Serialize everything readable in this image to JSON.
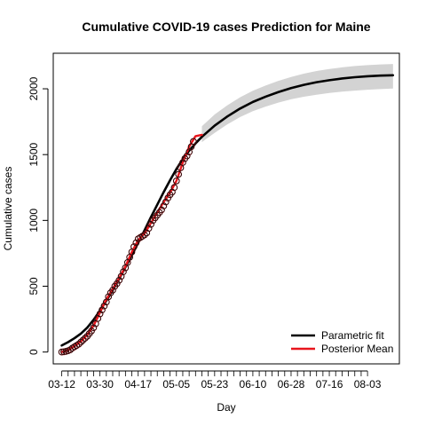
{
  "chart_data": {
    "type": "line",
    "title": "Cumulative COVID-19 cases Prediction for Maine",
    "xlabel": "Day",
    "ylabel": "Cumulative cases",
    "x_tick_labels": [
      "03-12",
      "03-30",
      "04-17",
      "05-05",
      "05-23",
      "06-10",
      "06-28",
      "07-16",
      "08-03"
    ],
    "y_ticks": [
      0,
      500,
      1000,
      1500,
      2000
    ],
    "x_start_date": "2020-03-12",
    "xlim": [
      "2020-03-08",
      "2020-08-18"
    ],
    "ylim": [
      -90,
      2270
    ],
    "legend": {
      "position": "bottom-right",
      "entries": [
        {
          "label": "Parametric fit",
          "color": "#000000"
        },
        {
          "label": "Posterior Mean",
          "color": "#e8151c"
        }
      ]
    },
    "series": [
      {
        "name": "Parametric fit",
        "color": "#000000",
        "style": "line",
        "points": [
          [
            "2020-03-12",
            50
          ],
          [
            "2020-03-15",
            75
          ],
          [
            "2020-03-18",
            105
          ],
          [
            "2020-03-21",
            140
          ],
          [
            "2020-03-24",
            185
          ],
          [
            "2020-03-27",
            245
          ],
          [
            "2020-03-30",
            315
          ],
          [
            "2020-04-02",
            390
          ],
          [
            "2020-04-05",
            470
          ],
          [
            "2020-04-08",
            555
          ],
          [
            "2020-04-11",
            645
          ],
          [
            "2020-04-14",
            735
          ],
          [
            "2020-04-17",
            830
          ],
          [
            "2020-04-20",
            925
          ],
          [
            "2020-04-23",
            1025
          ],
          [
            "2020-04-26",
            1120
          ],
          [
            "2020-04-29",
            1215
          ],
          [
            "2020-05-02",
            1305
          ],
          [
            "2020-05-05",
            1390
          ],
          [
            "2020-05-08",
            1465
          ],
          [
            "2020-05-11",
            1530
          ],
          [
            "2020-05-14",
            1585
          ],
          [
            "2020-05-17",
            1635
          ],
          [
            "2020-05-23",
            1720
          ],
          [
            "2020-05-29",
            1790
          ],
          [
            "2020-06-04",
            1850
          ],
          [
            "2020-06-10",
            1900
          ],
          [
            "2020-06-16",
            1940
          ],
          [
            "2020-06-22",
            1975
          ],
          [
            "2020-06-28",
            2005
          ],
          [
            "2020-07-04",
            2030
          ],
          [
            "2020-07-10",
            2050
          ],
          [
            "2020-07-16",
            2065
          ],
          [
            "2020-07-22",
            2078
          ],
          [
            "2020-07-28",
            2088
          ],
          [
            "2020-08-03",
            2095
          ],
          [
            "2020-08-09",
            2100
          ],
          [
            "2020-08-15",
            2103
          ]
        ]
      },
      {
        "name": "Posterior Mean",
        "color": "#e8151c",
        "style": "line",
        "points": [
          [
            "2020-03-12",
            0
          ],
          [
            "2020-03-15",
            15
          ],
          [
            "2020-03-18",
            45
          ],
          [
            "2020-03-21",
            80
          ],
          [
            "2020-03-24",
            130
          ],
          [
            "2020-03-27",
            200
          ],
          [
            "2020-03-30",
            300
          ],
          [
            "2020-04-02",
            400
          ],
          [
            "2020-04-05",
            480
          ],
          [
            "2020-04-08",
            560
          ],
          [
            "2020-04-11",
            650
          ],
          [
            "2020-04-14",
            760
          ],
          [
            "2020-04-17",
            850
          ],
          [
            "2020-04-20",
            900
          ],
          [
            "2020-04-23",
            980
          ],
          [
            "2020-04-26",
            1060
          ],
          [
            "2020-04-29",
            1140
          ],
          [
            "2020-05-02",
            1210
          ],
          [
            "2020-05-05",
            1300
          ],
          [
            "2020-05-08",
            1440
          ],
          [
            "2020-05-11",
            1560
          ],
          [
            "2020-05-14",
            1640
          ],
          [
            "2020-05-17",
            1650
          ]
        ]
      },
      {
        "name": "Observed cases",
        "style": "points",
        "color": "#000000",
        "fill": "#b8262a",
        "points": [
          [
            "2020-03-12",
            0
          ],
          [
            "2020-03-13",
            2
          ],
          [
            "2020-03-14",
            5
          ],
          [
            "2020-03-15",
            10
          ],
          [
            "2020-03-16",
            17
          ],
          [
            "2020-03-17",
            30
          ],
          [
            "2020-03-18",
            40
          ],
          [
            "2020-03-19",
            50
          ],
          [
            "2020-03-20",
            60
          ],
          [
            "2020-03-21",
            75
          ],
          [
            "2020-03-22",
            90
          ],
          [
            "2020-03-23",
            105
          ],
          [
            "2020-03-24",
            120
          ],
          [
            "2020-03-25",
            140
          ],
          [
            "2020-03-26",
            160
          ],
          [
            "2020-03-27",
            185
          ],
          [
            "2020-03-28",
            215
          ],
          [
            "2020-03-29",
            255
          ],
          [
            "2020-03-30",
            290
          ],
          [
            "2020-03-31",
            320
          ],
          [
            "2020-04-01",
            350
          ],
          [
            "2020-04-02",
            380
          ],
          [
            "2020-04-03",
            420
          ],
          [
            "2020-04-04",
            450
          ],
          [
            "2020-04-05",
            470
          ],
          [
            "2020-04-06",
            500
          ],
          [
            "2020-04-07",
            520
          ],
          [
            "2020-04-08",
            545
          ],
          [
            "2020-04-09",
            575
          ],
          [
            "2020-04-10",
            610
          ],
          [
            "2020-04-11",
            640
          ],
          [
            "2020-04-12",
            680
          ],
          [
            "2020-04-13",
            720
          ],
          [
            "2020-04-14",
            760
          ],
          [
            "2020-04-15",
            800
          ],
          [
            "2020-04-16",
            830
          ],
          [
            "2020-04-17",
            860
          ],
          [
            "2020-04-18",
            870
          ],
          [
            "2020-04-19",
            880
          ],
          [
            "2020-04-20",
            890
          ],
          [
            "2020-04-21",
            905
          ],
          [
            "2020-04-22",
            940
          ],
          [
            "2020-04-23",
            970
          ],
          [
            "2020-04-24",
            1000
          ],
          [
            "2020-04-25",
            1020
          ],
          [
            "2020-04-26",
            1040
          ],
          [
            "2020-04-27",
            1060
          ],
          [
            "2020-04-28",
            1080
          ],
          [
            "2020-04-29",
            1110
          ],
          [
            "2020-04-30",
            1140
          ],
          [
            "2020-05-01",
            1170
          ],
          [
            "2020-05-02",
            1195
          ],
          [
            "2020-05-03",
            1215
          ],
          [
            "2020-05-04",
            1250
          ],
          [
            "2020-05-05",
            1300
          ],
          [
            "2020-05-06",
            1350
          ],
          [
            "2020-05-07",
            1400
          ],
          [
            "2020-05-08",
            1440
          ],
          [
            "2020-05-09",
            1470
          ],
          [
            "2020-05-10",
            1490
          ],
          [
            "2020-05-11",
            1520
          ],
          [
            "2020-05-12",
            1560
          ],
          [
            "2020-05-13",
            1600
          ]
        ]
      }
    ],
    "confidence_band": {
      "color": "#d3d3d3",
      "start": "2020-05-17",
      "points": [
        [
          "2020-05-17",
          1595,
          1715
        ],
        [
          "2020-05-20",
          1630,
          1760
        ],
        [
          "2020-05-23",
          1665,
          1805
        ],
        [
          "2020-05-29",
          1730,
          1875
        ],
        [
          "2020-06-04",
          1785,
          1935
        ],
        [
          "2020-06-10",
          1830,
          1985
        ],
        [
          "2020-06-16",
          1865,
          2025
        ],
        [
          "2020-06-22",
          1895,
          2060
        ],
        [
          "2020-06-28",
          1920,
          2090
        ],
        [
          "2020-07-04",
          1940,
          2115
        ],
        [
          "2020-07-10",
          1955,
          2135
        ],
        [
          "2020-07-16",
          1968,
          2150
        ],
        [
          "2020-07-22",
          1978,
          2163
        ],
        [
          "2020-07-28",
          1986,
          2173
        ],
        [
          "2020-08-03",
          1993,
          2180
        ],
        [
          "2020-08-09",
          1998,
          2185
        ],
        [
          "2020-08-15",
          2002,
          2188
        ]
      ]
    }
  }
}
